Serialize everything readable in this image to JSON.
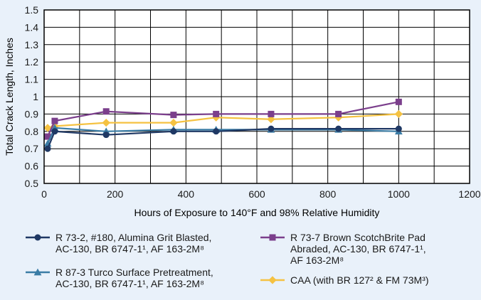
{
  "chart_data": {
    "type": "line",
    "title": "",
    "xlabel": "Hours of Exposure to 140°F and 98% Relative Humidity",
    "ylabel": "Total Crack Length, Inches",
    "xlim": [
      0,
      1200
    ],
    "ylim": [
      0.5,
      1.5
    ],
    "xticks": [
      "0",
      "200",
      "400",
      "600",
      "800",
      "1000",
      "1200"
    ],
    "yticks": [
      "0.5",
      "0.6",
      "0.7",
      "0.8",
      "0.9",
      "1",
      "1.1",
      "1.2",
      "1.3",
      "1.4",
      "1.5"
    ],
    "grid": true,
    "legend_position": "bottom",
    "series": [
      {
        "name": "R 73-2, #180, Alumina Grit Blasted, AC-130, BR 6747-1¹, AF 163-2M⁸",
        "legend_lines": [
          "R 73-2, #180, Alumina Grit Blasted,",
          "AC-130, BR 6747-1¹, AF 163-2M⁸"
        ],
        "color": "#1f3864",
        "marker": "circle",
        "x": [
          10,
          30,
          175,
          365,
          485,
          640,
          830,
          1000
        ],
        "y": [
          0.7,
          0.8,
          0.78,
          0.8,
          0.8,
          0.815,
          0.815,
          0.815
        ]
      },
      {
        "name": "R 87-3 Turco Surface Pretreatment, AC-130, BR 6747-1¹, AF 163-2M⁸",
        "legend_lines": [
          "R 87-3 Turco Surface Pretreatment,",
          "AC-130, BR 6747-1¹, AF 163-2M⁸"
        ],
        "color": "#3a7ca5",
        "marker": "triangle",
        "x": [
          10,
          30,
          175,
          365,
          485,
          640,
          830,
          1000
        ],
        "y": [
          0.73,
          0.82,
          0.8,
          0.81,
          0.81,
          0.81,
          0.81,
          0.8
        ]
      },
      {
        "name": "R 73-7 Brown ScotchBrite Pad Abraded, AC-130, BR 6747-1¹, AF 163-2M⁸",
        "legend_lines": [
          "R 73-7 Brown ScotchBrite Pad",
          "Abraded, AC-130, BR 6747-1¹,",
          "AF 163-2M⁸"
        ],
        "color": "#7b3f8c",
        "marker": "square",
        "x": [
          10,
          30,
          175,
          365,
          485,
          640,
          830,
          1000
        ],
        "y": [
          0.77,
          0.86,
          0.915,
          0.895,
          0.9,
          0.9,
          0.9,
          0.97
        ]
      },
      {
        "name": "CAA (with BR 127² & FM 73M³)",
        "legend_lines": [
          "CAA (with BR 127² & FM 73M³)"
        ],
        "color": "#f5c242",
        "marker": "diamond",
        "x": [
          10,
          30,
          175,
          365,
          485,
          640,
          830,
          1000
        ],
        "y": [
          0.82,
          0.83,
          0.85,
          0.85,
          0.88,
          0.87,
          0.88,
          0.9
        ]
      }
    ]
  }
}
